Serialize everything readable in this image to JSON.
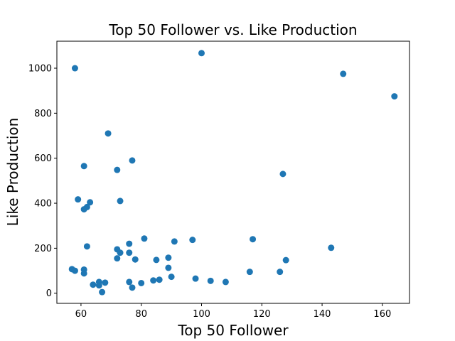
{
  "chart_data": {
    "type": "scatter",
    "title": "Top 50 Follower vs. Like Production",
    "xlabel": "Top 50 Follower",
    "ylabel": "Like Production",
    "xlim": [
      52,
      169
    ],
    "ylim": [
      -45,
      1120
    ],
    "xticks": [
      60,
      80,
      100,
      120,
      140,
      160
    ],
    "yticks": [
      0,
      200,
      400,
      600,
      800,
      1000
    ],
    "marker_color": "#1f77b4",
    "grid": false,
    "points": [
      {
        "x": 57,
        "y": 107
      },
      {
        "x": 58,
        "y": 100
      },
      {
        "x": 58,
        "y": 1000
      },
      {
        "x": 59,
        "y": 417
      },
      {
        "x": 61,
        "y": 565
      },
      {
        "x": 61,
        "y": 373
      },
      {
        "x": 61,
        "y": 105
      },
      {
        "x": 61,
        "y": 88
      },
      {
        "x": 62,
        "y": 383
      },
      {
        "x": 62,
        "y": 208
      },
      {
        "x": 63,
        "y": 404
      },
      {
        "x": 64,
        "y": 38
      },
      {
        "x": 66,
        "y": 50
      },
      {
        "x": 66,
        "y": 35
      },
      {
        "x": 67,
        "y": 5
      },
      {
        "x": 68,
        "y": 47
      },
      {
        "x": 69,
        "y": 710
      },
      {
        "x": 72,
        "y": 548
      },
      {
        "x": 72,
        "y": 195
      },
      {
        "x": 72,
        "y": 155
      },
      {
        "x": 73,
        "y": 410
      },
      {
        "x": 73,
        "y": 180
      },
      {
        "x": 76,
        "y": 220
      },
      {
        "x": 76,
        "y": 180
      },
      {
        "x": 76,
        "y": 50
      },
      {
        "x": 77,
        "y": 590
      },
      {
        "x": 77,
        "y": 25
      },
      {
        "x": 78,
        "y": 150
      },
      {
        "x": 80,
        "y": 45
      },
      {
        "x": 81,
        "y": 243
      },
      {
        "x": 84,
        "y": 57
      },
      {
        "x": 85,
        "y": 148
      },
      {
        "x": 86,
        "y": 60
      },
      {
        "x": 89,
        "y": 158
      },
      {
        "x": 89,
        "y": 113
      },
      {
        "x": 90,
        "y": 73
      },
      {
        "x": 91,
        "y": 230
      },
      {
        "x": 97,
        "y": 237
      },
      {
        "x": 98,
        "y": 65
      },
      {
        "x": 100,
        "y": 1067
      },
      {
        "x": 103,
        "y": 55
      },
      {
        "x": 108,
        "y": 50
      },
      {
        "x": 116,
        "y": 95
      },
      {
        "x": 117,
        "y": 240
      },
      {
        "x": 126,
        "y": 95
      },
      {
        "x": 127,
        "y": 530
      },
      {
        "x": 128,
        "y": 147
      },
      {
        "x": 143,
        "y": 202
      },
      {
        "x": 147,
        "y": 975
      },
      {
        "x": 164,
        "y": 875
      }
    ]
  }
}
